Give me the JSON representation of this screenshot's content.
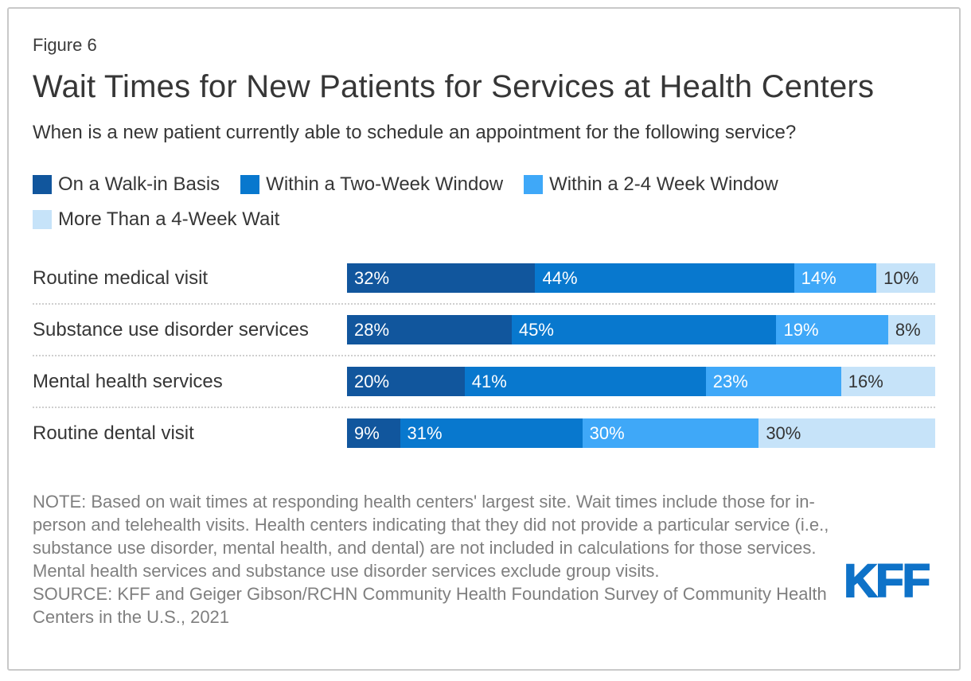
{
  "header": {
    "figure_label": "Figure 6",
    "title": "Wait Times for New Patients for Services at Health Centers",
    "subtitle": "When is a new patient currently able to schedule an appointment for the following service?"
  },
  "chart_data": {
    "type": "bar",
    "stacked": true,
    "orientation": "horizontal",
    "value_suffix": "%",
    "xlim": [
      0,
      100
    ],
    "legend_position": "top",
    "grid": false,
    "categories": [
      "Routine medical visit",
      "Substance use disorder services",
      "Mental health services",
      "Routine dental visit"
    ],
    "series": [
      {
        "name": "On a Walk-in Basis",
        "color": "#11569D",
        "values": [
          32,
          28,
          20,
          9
        ]
      },
      {
        "name": "Within a Two-Week Window",
        "color": "#0878CE",
        "values": [
          44,
          45,
          41,
          31
        ]
      },
      {
        "name": "Within a 2-4 Week Window",
        "color": "#3FA8F8",
        "values": [
          14,
          19,
          23,
          30
        ]
      },
      {
        "name": "More Than a 4-Week Wait",
        "color": "#C6E3F9",
        "values": [
          10,
          8,
          16,
          30
        ]
      }
    ]
  },
  "footer": {
    "note": "NOTE: Based on wait times at responding health centers' largest site. Wait times include those for in-person and telehealth visits. Health centers indicating that they did not provide a particular service (i.e., substance use disorder, mental health, and dental) are not included in calculations for those services. Mental health services and substance use disorder services exclude group visits.",
    "source": "SOURCE: KFF and Geiger Gibson/RCHN Community Health Foundation Survey of Community Health Centers in the U.S., 2021",
    "logo_text": "KFF"
  },
  "colors": {
    "kff_logo_blue": "#0E72C8",
    "card_border": "#C9C9C9",
    "note_gray": "#7F7F7F",
    "heading_gray": "#363636",
    "bar_label_light": "#FFFFFF",
    "bar_label_dark": "#333333"
  }
}
